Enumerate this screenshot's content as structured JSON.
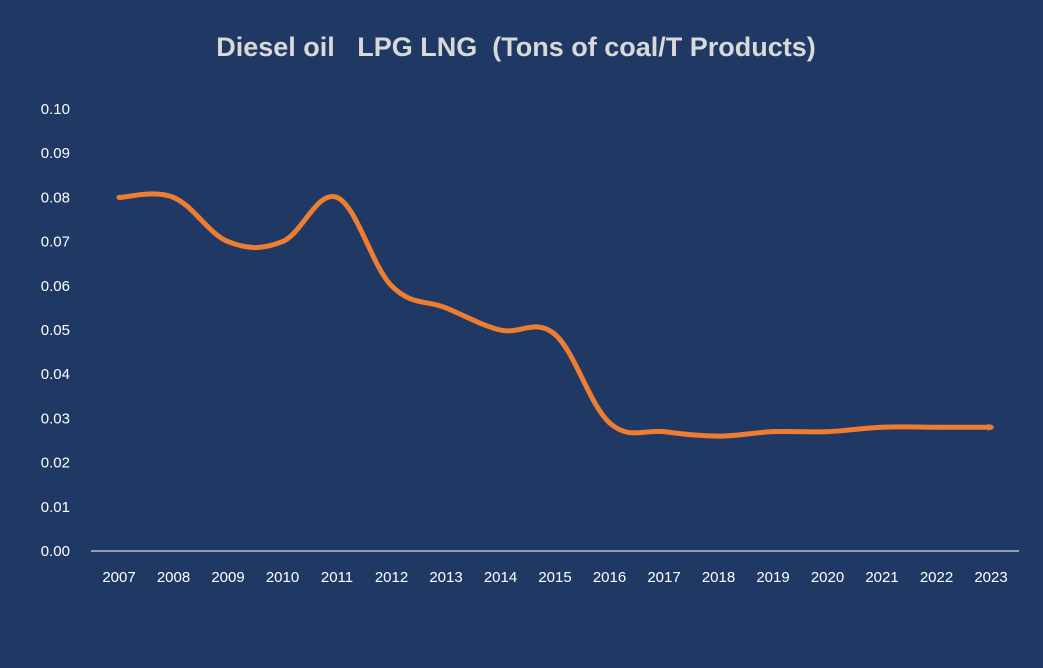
{
  "chart_data": {
    "type": "line",
    "title": "Diesel oil   LPG LNG  (Tons of coal/T Products)",
    "xlabel": "",
    "ylabel": "",
    "x": [
      "2007",
      "2008",
      "2009",
      "2010",
      "2011",
      "2012",
      "2013",
      "2014",
      "2015",
      "2016",
      "2017",
      "2018",
      "2019",
      "2020",
      "2021",
      "2022",
      "2023"
    ],
    "values": [
      0.08,
      0.08,
      0.07,
      0.07,
      0.08,
      0.06,
      0.055,
      0.05,
      0.049,
      0.029,
      0.027,
      0.026,
      0.027,
      0.027,
      0.028,
      0.028,
      0.028
    ],
    "y_ticks": [
      "0.00",
      "0.01",
      "0.02",
      "0.03",
      "0.04",
      "0.05",
      "0.06",
      "0.07",
      "0.08",
      "0.09",
      "0.10"
    ],
    "ylim": [
      0,
      0.1
    ],
    "grid": false,
    "legend": "none",
    "line_end": "arrow",
    "colors": {
      "background": "#203864",
      "line": "#ed7d31",
      "axis": "#d9d9d9",
      "title": "#d9d9d9",
      "ticks": "#ffffff"
    }
  }
}
